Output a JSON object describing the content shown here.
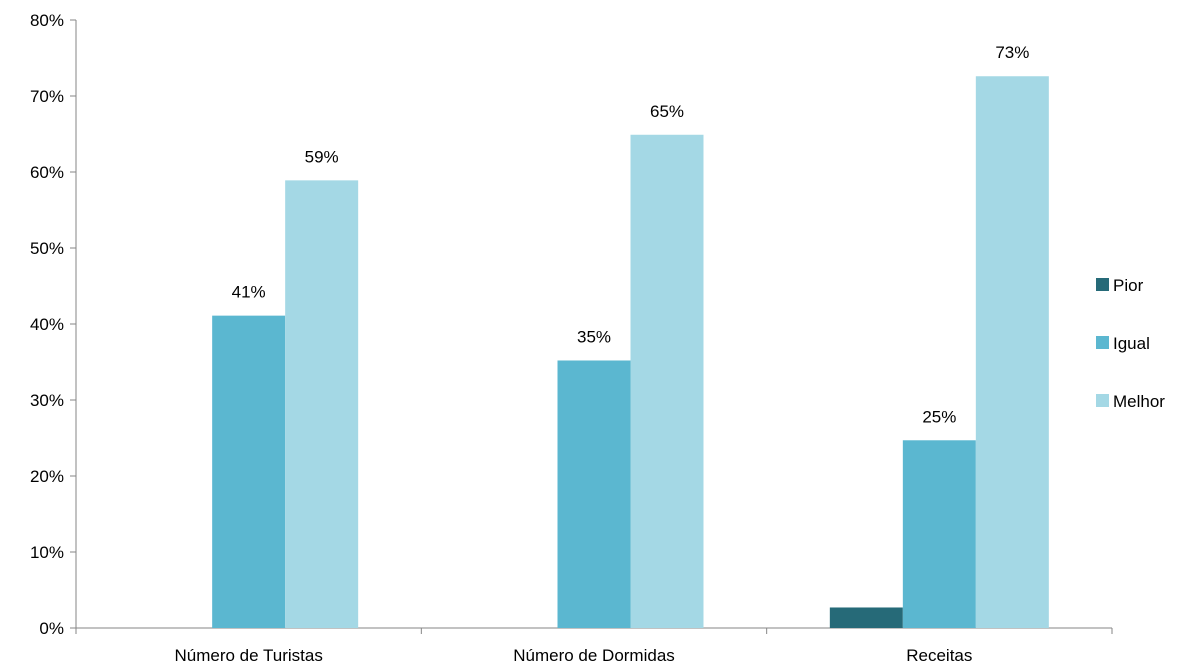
{
  "chart_data": {
    "type": "bar",
    "categories": [
      "Número de Turistas",
      "Número de Dormidas",
      "Receitas"
    ],
    "series": [
      {
        "name": "Pior",
        "color": "#266a78",
        "values": [
          0,
          0,
          2.7
        ],
        "labels": [
          "",
          "",
          ""
        ]
      },
      {
        "name": "Igual",
        "color": "#5bb7d0",
        "values": [
          41.1,
          35.2,
          24.7
        ],
        "labels": [
          "41%",
          "35%",
          "25%"
        ]
      },
      {
        "name": "Melhor",
        "color": "#a4d8e5",
        "values": [
          58.9,
          64.9,
          72.6
        ],
        "labels": [
          "59%",
          "65%",
          "73%"
        ]
      }
    ],
    "yticks": [
      "0%",
      "10%",
      "20%",
      "30%",
      "40%",
      "50%",
      "60%",
      "70%",
      "80%"
    ],
    "ylim": [
      0,
      80
    ],
    "legend_position": "right",
    "grid": false
  }
}
